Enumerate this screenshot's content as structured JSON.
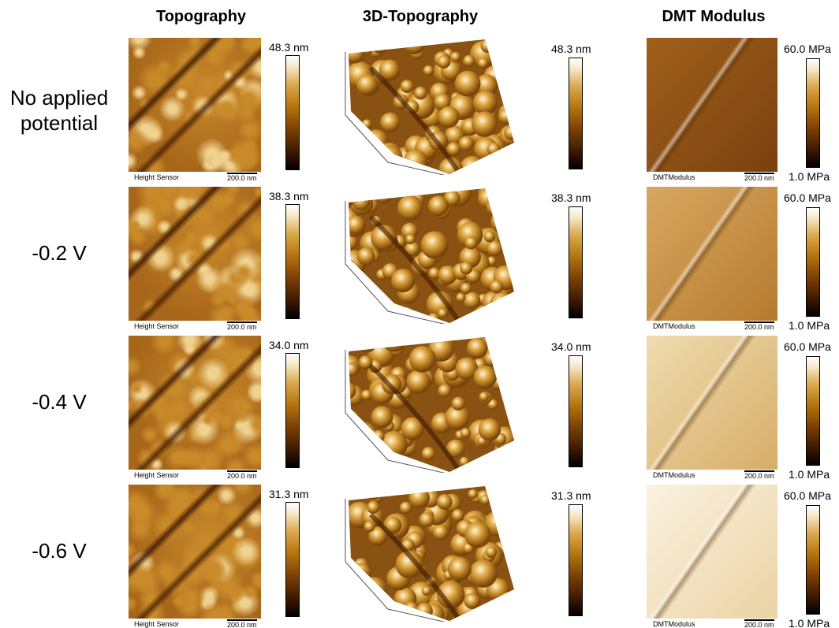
{
  "columns": [
    "Topography",
    "3D-Topography",
    "DMT Modulus"
  ],
  "rows": [
    {
      "label": "No applied potential",
      "height_max": "48.3 nm",
      "height_3d_max": "48.3 nm",
      "modulus_max": "60.0 MPa",
      "modulus_min": "1.0 MPa",
      "height_caption": "Height Sensor",
      "height_scale": "200.0 nm",
      "modulus_caption": "DMTModulus",
      "modulus_scale": "200.0 nm"
    },
    {
      "label": "-0.2 V",
      "height_max": "38.3 nm",
      "height_3d_max": "38.3 nm",
      "modulus_max": "60.0 MPa",
      "modulus_min": "1.0 MPa",
      "height_caption": "Height Sensor",
      "height_scale": "200.0 nm",
      "modulus_caption": "DMTModulus",
      "modulus_scale": "200.0 nm"
    },
    {
      "label": "-0.4 V",
      "height_max": "34.0 nm",
      "height_3d_max": "34.0 nm",
      "modulus_max": "60.0 MPa",
      "modulus_min": "1.0 MPa",
      "height_caption": "Height Sensor",
      "height_scale": "200.0 nm",
      "modulus_caption": "DMTModulus",
      "modulus_scale": "200.0 nm"
    },
    {
      "label": "-0.6 V",
      "height_max": "31.3 nm",
      "height_3d_max": "31.3 nm",
      "modulus_max": "60.0 MPa",
      "modulus_min": "1.0 MPa",
      "height_caption": "Height Sensor",
      "height_scale": "200.0 nm",
      "modulus_caption": "DMTModulus",
      "modulus_scale": "200.0 nm"
    }
  ]
}
